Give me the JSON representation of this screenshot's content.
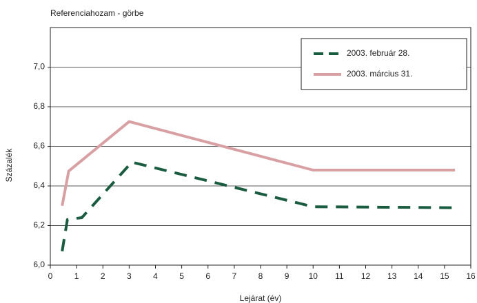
{
  "chart_data": {
    "type": "line",
    "title": "Referenciahozam - görbe",
    "x_label": "Lejárat (év)",
    "y_label": "Százalék",
    "xlim": [
      0,
      16
    ],
    "xticks": [
      0,
      1,
      2,
      3,
      4,
      5,
      6,
      7,
      8,
      9,
      10,
      11,
      12,
      13,
      14,
      15,
      16
    ],
    "ylim": [
      6.0,
      7.2
    ],
    "yticks": [
      {
        "value": 6.0,
        "label": "6,0"
      },
      {
        "value": 6.2,
        "label": "6,2"
      },
      {
        "value": 6.4,
        "label": "6,4"
      },
      {
        "value": 6.6,
        "label": "6,6"
      },
      {
        "value": 6.8,
        "label": "6,8"
      },
      {
        "value": 7.0,
        "label": "7,0"
      }
    ],
    "grid": true,
    "legend": "upper right",
    "series": [
      {
        "name": "2003. február 28.",
        "color": "#1a5c40",
        "dashed": true,
        "x": [
          0.45,
          0.65,
          1.2,
          3.1,
          10,
          15.4
        ],
        "values": [
          6.07,
          6.23,
          6.24,
          6.52,
          6.295,
          6.29
        ]
      },
      {
        "name": "2003. március 31.",
        "color": "#d9a0a3",
        "dashed": false,
        "x": [
          0.45,
          0.7,
          3.0,
          10,
          15.4
        ],
        "values": [
          6.3,
          6.475,
          6.725,
          6.48,
          6.48
        ]
      }
    ]
  }
}
